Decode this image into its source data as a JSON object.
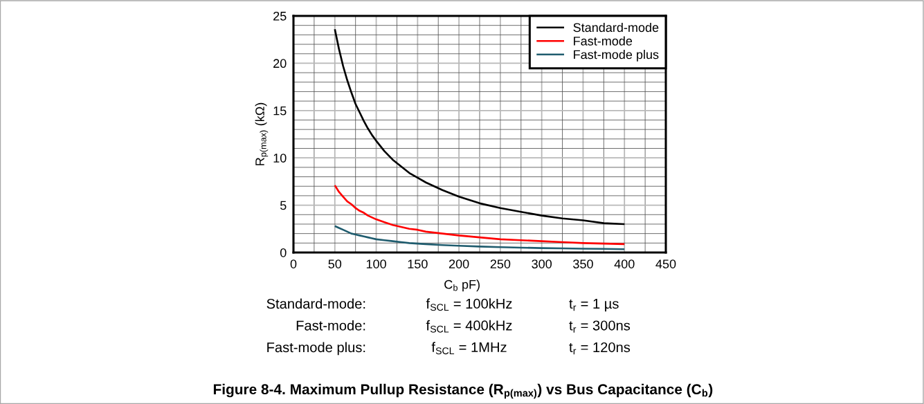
{
  "chart_data": {
    "type": "line",
    "title": "Figure 8-4. Maximum Pullup Resistance (R$_{p(max)}$) vs Bus Capacitance (C$_{b}$)",
    "xlabel": "C$_{b}$ pF)",
    "ylabel": "R$_{p(max)}$ (kΩ)",
    "annotations": [
      "Standard-mode:",
      "f$_{SCL}$ = 100kHz",
      "t$_{r}$ = 1 µs",
      "Fast-mode:",
      "f$_{SCL}$ = 400kHz",
      "t$_{r}$ = 300ns",
      "Fast-mode plus:",
      "f$_{SCL}$ = 1MHz",
      "t$_{r}$ = 120ns"
    ],
    "x": [
      50,
      55,
      60,
      65,
      70,
      75,
      80,
      85,
      90,
      95,
      100,
      110,
      120,
      130,
      140,
      150,
      160,
      180,
      200,
      225,
      250,
      275,
      300,
      325,
      350,
      375,
      400
    ],
    "series": [
      {
        "name": "Standard-mode",
        "color": "#000000",
        "values": [
          23.6,
          21.5,
          19.7,
          18.2,
          16.9,
          15.7,
          14.8,
          13.9,
          13.1,
          12.4,
          11.8,
          10.7,
          9.8,
          9.1,
          8.4,
          7.9,
          7.4,
          6.6,
          5.9,
          5.2,
          4.7,
          4.3,
          3.9,
          3.6,
          3.4,
          3.1,
          3.0
        ]
      },
      {
        "name": "Fast-mode",
        "color": "#ff0000",
        "values": [
          7.1,
          6.4,
          5.9,
          5.4,
          5.1,
          4.7,
          4.4,
          4.2,
          3.9,
          3.7,
          3.5,
          3.2,
          2.9,
          2.7,
          2.5,
          2.4,
          2.2,
          2.0,
          1.8,
          1.6,
          1.4,
          1.3,
          1.2,
          1.1,
          1.0,
          0.94,
          0.89
        ]
      },
      {
        "name": "Fast-mode plus",
        "color": "#1f5c6e",
        "values": [
          2.8,
          2.6,
          2.4,
          2.2,
          2.0,
          1.9,
          1.8,
          1.7,
          1.6,
          1.5,
          1.4,
          1.3,
          1.2,
          1.1,
          1.0,
          0.94,
          0.89,
          0.79,
          0.71,
          0.63,
          0.57,
          0.51,
          0.47,
          0.44,
          0.4,
          0.38,
          0.35
        ]
      }
    ],
    "xlim": [
      0,
      450
    ],
    "xticks": [
      0,
      50,
      100,
      150,
      200,
      250,
      300,
      350,
      400,
      450
    ],
    "ylim": [
      0,
      25
    ],
    "yticks": [
      0,
      5,
      10,
      15,
      20,
      25
    ],
    "grid": true,
    "legend": "top right",
    "line_style": "solid"
  }
}
